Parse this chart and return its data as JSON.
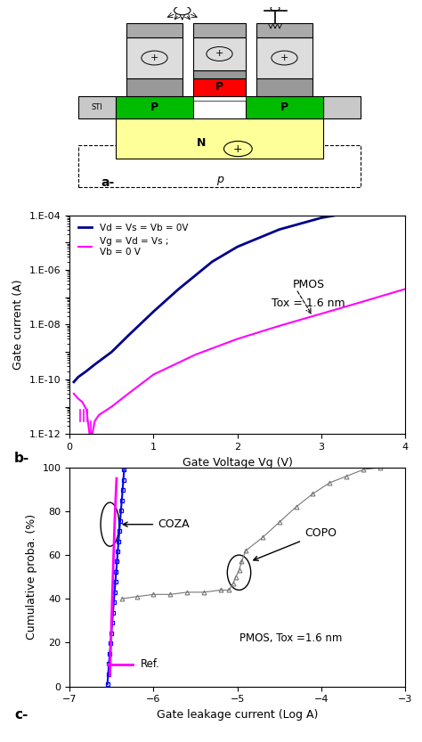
{
  "fig_width": 4.74,
  "fig_height": 8.33,
  "panel_a_label": "a-",
  "panel_b_label": "b-",
  "panel_c_label": "c-",
  "blue_color": "#00008B",
  "magenta_color": "#FF00FF",
  "gray_color": "#808080",
  "blue_cdf_color": "#0000FF",
  "panel_b_title_line1": "PMOS",
  "panel_b_title_line2": "Tox = 1.6 nm",
  "panel_b_xlabel": "Gate Voltage Vg (V)",
  "panel_b_ylabel": "Gate current (A)",
  "panel_b_legend1": "Vd = Vs = Vb = 0V",
  "panel_b_legend2": "Vg = Vd = Vs ;\nVb = 0 V",
  "panel_c_xlabel": "Gate leakage current (Log A)",
  "panel_c_ylabel": "Cumulative proba. (%)",
  "panel_c_text": "PMOS, Tox =1.6 nm",
  "panel_c_legend": "Ref.",
  "ytick_labels": {
    "1e-12": "1.E-12",
    "1e-10": "1.E-10",
    "1e-08": "1.E-08",
    "1e-06": "1.E-06",
    "1e-04": "1.E-04"
  }
}
